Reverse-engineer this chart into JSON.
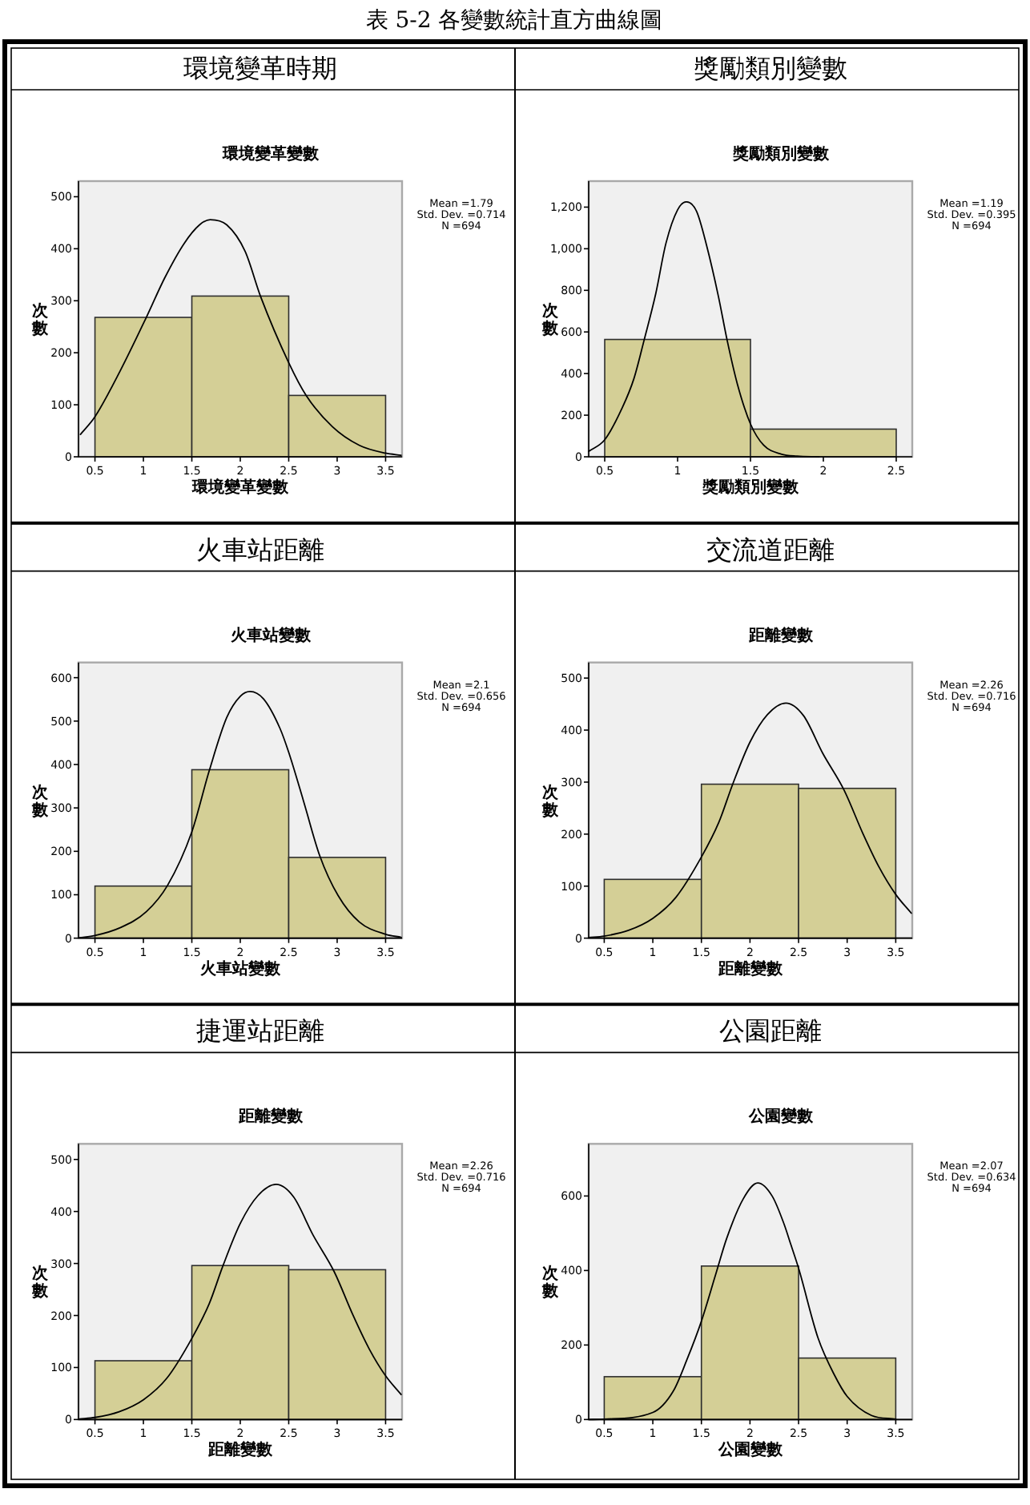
{
  "chart_data": [
    {
      "type": "histogram",
      "title": "環境變革時期",
      "subtitle": "環境變革變數",
      "xlabel": "環境變革變數",
      "ylabel": "次數",
      "bins": [
        0.5,
        1.5,
        2.5,
        3.5
      ],
      "values": [
        268,
        309,
        118
      ],
      "color": "#d4cf96",
      "series": [
        {
          "type": "line",
          "color": "#000000",
          "x": [
            0.35,
            0.5,
            0.76,
            1.03,
            1.22,
            1.42,
            1.58,
            1.69,
            1.86,
            2.05,
            2.21,
            2.5,
            2.68,
            2.95,
            3.23,
            3.5,
            3.66
          ],
          "values": [
            43,
            77,
            165,
            268,
            344,
            410,
            446,
            456,
            446,
            395,
            308,
            181,
            118,
            58,
            22,
            7,
            3
          ]
        }
      ],
      "xlim": [
        0.33,
        3.67
      ],
      "xticks": [
        0.5,
        1,
        1.5,
        2,
        2.5,
        3,
        3.5
      ],
      "ylim": [
        0,
        530
      ],
      "yticks": [
        0,
        100,
        200,
        300,
        400,
        500
      ],
      "annotations": [
        "表 5-2 各變數統計直方曲線圖",
        "Mean =1.79",
        "Std. Dev. =0.714",
        "N =694"
      ]
    },
    {
      "type": "histogram",
      "title": "獎勵類別變數",
      "subtitle": "獎勵類別變數",
      "xlabel": "獎勵類別變數",
      "ylabel": "次數",
      "bins": [
        0.5,
        1.5,
        2.5
      ],
      "values": [
        564,
        133
      ],
      "color": "#d4cf96",
      "series": [
        {
          "type": "line",
          "color": "#000000",
          "x": [
            0.39,
            0.5,
            0.62,
            0.7,
            0.77,
            0.85,
            0.92,
            1.0,
            1.06,
            1.13,
            1.2,
            1.28,
            1.34,
            1.41,
            1.5,
            1.59,
            1.71,
            1.82,
            1.97
          ],
          "values": [
            26,
            82,
            235,
            375,
            560,
            784,
            1026,
            1187,
            1225,
            1180,
            1013,
            771,
            560,
            350,
            158,
            56,
            13,
            3,
            0
          ]
        }
      ],
      "xlim": [
        0.39,
        2.61
      ],
      "xticks": [
        0.5,
        1,
        1.5,
        2,
        2.5
      ],
      "ylim": [
        0,
        1325
      ],
      "yticks": [
        0,
        200,
        400,
        600,
        800,
        {
          "value": 1000,
          "label": "1,000"
        },
        {
          "value": 1200,
          "label": "1,200"
        }
      ],
      "annotations": [
        "Mean =1.19",
        "Std. Dev. =0.395",
        "N =694"
      ]
    },
    {
      "type": "histogram",
      "title": "火車站距離",
      "subtitle": "火車站變數",
      "xlabel": "火車站變數",
      "ylabel": "次數",
      "bins": [
        0.5,
        1.5,
        2.5,
        3.5
      ],
      "values": [
        120,
        388,
        186
      ],
      "color": "#d4cf96",
      "series": [
        {
          "type": "line",
          "color": "#000000",
          "x": [
            0.34,
            0.5,
            0.76,
            1.03,
            1.25,
            1.5,
            1.68,
            1.86,
            2.0,
            2.1,
            2.24,
            2.41,
            2.5,
            2.65,
            2.82,
            3.01,
            3.23,
            3.5,
            3.66
          ],
          "values": [
            1,
            6,
            24,
            61,
            122,
            245,
            386,
            508,
            557,
            568,
            551,
            483,
            428,
            318,
            190,
            98,
            37,
            9,
            2
          ]
        }
      ],
      "xlim": [
        0.33,
        3.67
      ],
      "xticks": [
        0.5,
        1,
        1.5,
        2,
        2.5,
        3,
        3.5
      ],
      "ylim": [
        0,
        635
      ],
      "yticks": [
        0,
        100,
        200,
        300,
        400,
        500,
        600
      ],
      "annotations": [
        "Mean =2.1",
        "Std. Dev. =0.656",
        "N =694"
      ]
    },
    {
      "type": "histogram",
      "title": "交流道距離",
      "subtitle": "距離變數",
      "xlabel": "距離變數",
      "ylabel": "次數",
      "bins": [
        0.5,
        1.5,
        2.5,
        3.5
      ],
      "values": [
        113,
        296,
        288
      ],
      "color": "#d4cf96",
      "series": [
        {
          "type": "line",
          "color": "#000000",
          "x": [
            0.34,
            0.5,
            0.75,
            1.0,
            1.24,
            1.5,
            1.68,
            1.82,
            2.0,
            2.18,
            2.37,
            2.55,
            2.75,
            2.97,
            3.16,
            3.33,
            3.5,
            3.66
          ],
          "values": [
            1,
            4,
            15,
            38,
            79,
            156,
            223,
            295,
            377,
            430,
            452,
            428,
            355,
            284,
            202,
            136,
            84,
            48
          ]
        }
      ],
      "xlim": [
        0.34,
        3.67
      ],
      "xticks": [
        0.5,
        1,
        1.5,
        2,
        2.5,
        3,
        3.5
      ],
      "ylim": [
        0,
        530
      ],
      "yticks": [
        0,
        100,
        200,
        300,
        400,
        500
      ],
      "annotations": [
        "Mean =2.26",
        "Std. Dev. =0.716",
        "N =694"
      ]
    },
    {
      "type": "histogram",
      "title": "捷運站距離",
      "subtitle": "距離變數",
      "xlabel": "距離變數",
      "ylabel": "次數",
      "bins": [
        0.5,
        1.5,
        2.5,
        3.5
      ],
      "values": [
        113,
        296,
        288
      ],
      "color": "#d4cf96",
      "series": [
        {
          "type": "line",
          "color": "#000000",
          "x": [
            0.34,
            0.5,
            0.75,
            1.0,
            1.24,
            1.5,
            1.68,
            1.82,
            2.0,
            2.18,
            2.37,
            2.55,
            2.75,
            2.97,
            3.16,
            3.33,
            3.5,
            3.66
          ],
          "values": [
            1,
            4,
            15,
            38,
            79,
            156,
            223,
            295,
            377,
            430,
            452,
            428,
            355,
            284,
            202,
            136,
            84,
            48
          ]
        }
      ],
      "xlim": [
        0.33,
        3.67
      ],
      "xticks": [
        0.5,
        1,
        1.5,
        2,
        2.5,
        3,
        3.5
      ],
      "ylim": [
        0,
        530
      ],
      "yticks": [
        0,
        100,
        200,
        300,
        400,
        500
      ],
      "annotations": [
        "Mean =2.26",
        "Std. Dev. =0.716",
        "N =694"
      ]
    },
    {
      "type": "histogram",
      "title": "公園距離",
      "subtitle": "公園變數",
      "xlabel": "公園變數",
      "ylabel": "次數",
      "bins": [
        0.5,
        1.5,
        2.5,
        3.5
      ],
      "values": [
        115,
        412,
        165
      ],
      "color": "#d4cf96",
      "series": [
        {
          "type": "line",
          "color": "#000000",
          "x": [
            0.34,
            0.5,
            1.0,
            1.21,
            1.35,
            1.5,
            1.65,
            1.76,
            1.93,
            2.08,
            2.23,
            2.35,
            2.42,
            2.5,
            2.7,
            2.87,
            3.0,
            3.25,
            3.5
          ],
          "values": [
            0,
            1,
            19,
            76,
            160,
            264,
            392,
            486,
            592,
            635,
            599,
            525,
            470,
            406,
            219,
            119,
            62,
            11,
            1
          ]
        }
      ],
      "xlim": [
        0.34,
        3.67
      ],
      "xticks": [
        0.5,
        1,
        1.5,
        2,
        2.5,
        3,
        3.5
      ],
      "ylim": [
        0,
        740
      ],
      "yticks": [
        0,
        200,
        400,
        600
      ],
      "annotations": [
        "Mean =2.07",
        "Std. Dev. =0.634",
        "N =694"
      ]
    }
  ]
}
